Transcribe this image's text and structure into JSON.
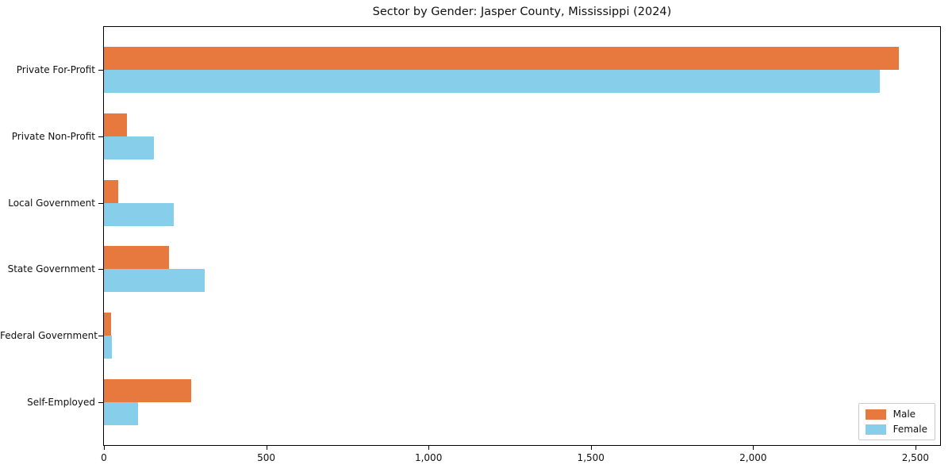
{
  "chart_data": {
    "type": "bar",
    "orientation": "horizontal",
    "title": "Sector by Gender: Jasper County, Mississippi (2024)",
    "xlabel": "",
    "ylabel": "",
    "categories": [
      "Private For-Profit",
      "Private Non-Profit",
      "Local Government",
      "State Government",
      "Federal Government",
      "Self-Employed"
    ],
    "series": [
      {
        "name": "Male",
        "color": "#e8793e",
        "values": [
          2450,
          70,
          45,
          200,
          22,
          270
        ]
      },
      {
        "name": "Female",
        "color": "#87ceeb",
        "values": [
          2390,
          155,
          215,
          310,
          25,
          105
        ]
      }
    ],
    "xlim": [
      0,
      2576
    ],
    "xticks": {
      "values": [
        0,
        500,
        1000,
        1500,
        2000,
        2500
      ],
      "labels": [
        "0",
        "500",
        "1,000",
        "1,500",
        "2,000",
        "2,500"
      ]
    },
    "grid": false,
    "legend_position": "lower right",
    "colors": {
      "axis": "#000000",
      "legend_border": "#cccccc",
      "background": "#ffffff"
    }
  }
}
